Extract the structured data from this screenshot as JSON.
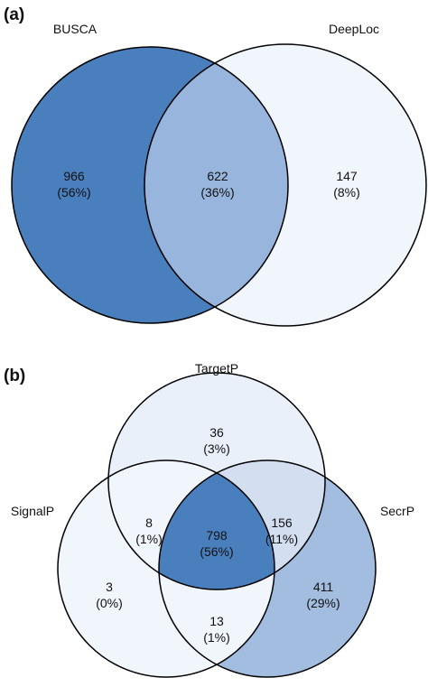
{
  "panel_a": {
    "letter": "(a)",
    "sets": {
      "busca": "BUSCA",
      "deeploc": "DeepLoc"
    },
    "regions": {
      "busca_only": {
        "count": "966",
        "pct": "(56%)"
      },
      "both": {
        "count": "622",
        "pct": "(36%)"
      },
      "deeploc_only": {
        "count": "147",
        "pct": "(8%)"
      }
    },
    "colors": {
      "busca_only": "#4a7fbe",
      "both": "#98b5dd",
      "deeploc_only": "#f1f5fc"
    }
  },
  "panel_b": {
    "letter": "(b)",
    "sets": {
      "targetp": "TargetP",
      "signalp": "SignalP",
      "secrp": "SecrP"
    },
    "regions": {
      "targetp_only": {
        "count": "36",
        "pct": "(3%)"
      },
      "targetp_signalp": {
        "count": "8",
        "pct": "(1%)"
      },
      "all_three": {
        "count": "798",
        "pct": "(56%)"
      },
      "targetp_secrp": {
        "count": "156",
        "pct": "(11%)"
      },
      "signalp_only": {
        "count": "3",
        "pct": "(0%)"
      },
      "secrp_only": {
        "count": "411",
        "pct": "(29%)"
      },
      "signalp_secrp": {
        "count": "13",
        "pct": "(1%)"
      }
    },
    "colors": {
      "base_light": "#f1f5fc",
      "targetp_only": "#eaf0f9",
      "targetp_secrp": "#d3def0",
      "secrp_only": "#a3bde0",
      "all_three": "#4a7fbe"
    }
  }
}
